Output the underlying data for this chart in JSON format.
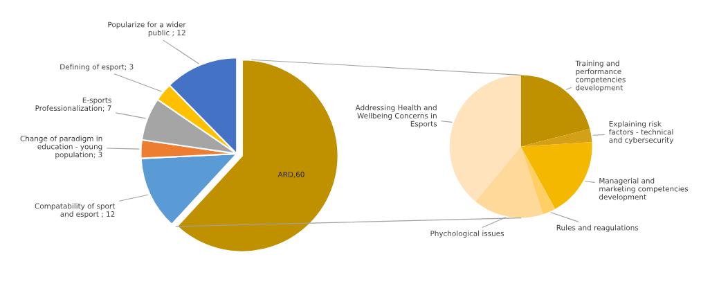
{
  "chart_data": [
    {
      "type": "pie",
      "categories": [
        "ARD,60",
        "Compatability of sport and esport ; 12",
        "Change of paradigm in education - young population; 3",
        "E-sports Professionalization; 7",
        "Defining of esport; 3",
        "Popularize for a wider public ; 12"
      ],
      "values": [
        60,
        12,
        3,
        7,
        3,
        12
      ],
      "colors": [
        "#bf9000",
        "#5b9bd5",
        "#ed7d31",
        "#a5a5a5",
        "#ffc000",
        "#4472c4"
      ]
    },
    {
      "type": "pie",
      "categories": [
        "Training and performance competencies development",
        "Explaining risk factors - technical and cybersecurity",
        "Managerial and marketing competencies development",
        "Rules and reagulations",
        "Phychological issues",
        "Addressing Health and Wellbeing Concerns in Esports"
      ],
      "values": [
        21,
        3,
        18,
        3,
        16,
        39
      ],
      "colors": [
        "#bf9000",
        "#d4a017",
        "#f5b800",
        "#ffcf66",
        "#ffd99a",
        "#ffe3bd"
      ]
    }
  ]
}
